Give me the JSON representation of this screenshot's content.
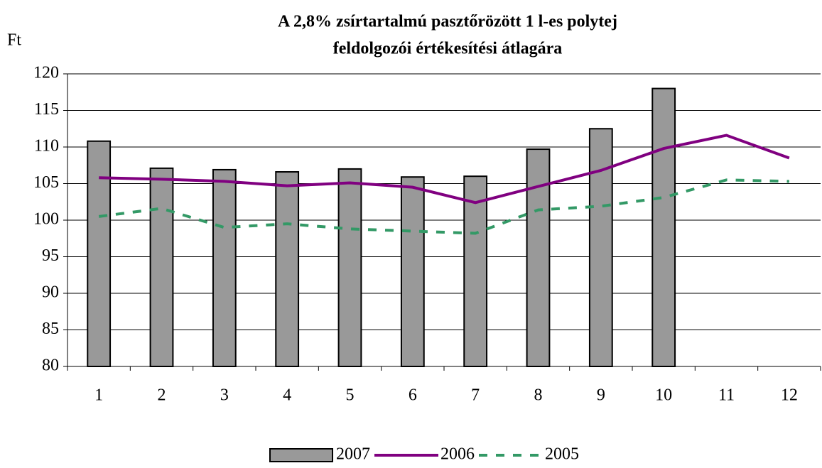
{
  "chart_data": {
    "type": "bar",
    "title": [
      "A 2,8% zsírtartalmú pasztőrözött 1 l-es polytej",
      "feldolgozói értékesítési átlagára"
    ],
    "y_label": "Ft",
    "categories": [
      "1",
      "2",
      "3",
      "4",
      "5",
      "6",
      "7",
      "8",
      "9",
      "10",
      "11",
      "12"
    ],
    "series": [
      {
        "name": "2007",
        "kind": "bar",
        "color": "#999999",
        "values": [
          110.8,
          107.1,
          106.9,
          106.6,
          107.0,
          105.9,
          106.0,
          109.7,
          112.5,
          118.0,
          null,
          null
        ]
      },
      {
        "name": "2006",
        "kind": "line",
        "color": "#800080",
        "dashed": false,
        "values": [
          105.8,
          105.6,
          105.3,
          104.7,
          105.1,
          104.5,
          102.4,
          104.6,
          106.8,
          109.8,
          111.6,
          108.5
        ]
      },
      {
        "name": "2005",
        "kind": "line",
        "color": "#339966",
        "dashed": true,
        "values": [
          100.5,
          101.6,
          99.0,
          99.5,
          98.8,
          98.5,
          98.2,
          101.4,
          101.9,
          103.1,
          105.5,
          105.3
        ]
      }
    ],
    "ylim": [
      80,
      120
    ],
    "yticks": [
      80,
      85,
      90,
      95,
      100,
      105,
      110,
      115,
      120
    ],
    "grid": true,
    "legend": "bottom"
  }
}
